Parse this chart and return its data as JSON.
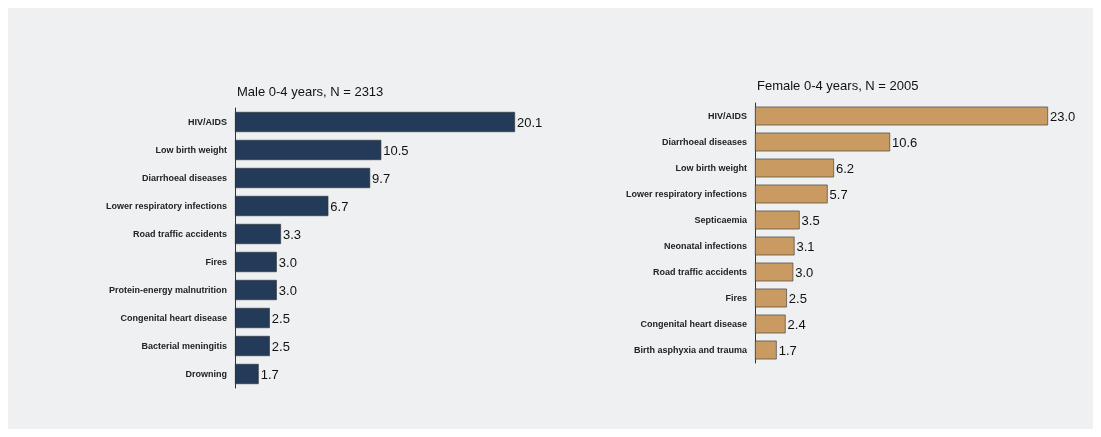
{
  "chart_data": [
    {
      "type": "bar",
      "orientation": "horizontal",
      "title": "Male 0-4 years, N = 2313",
      "categories": [
        "HIV/AIDS",
        "Low birth weight",
        "Diarrhoeal diseases",
        "Lower respiratory infections",
        "Road traffic accidents",
        "Fires",
        "Protein-energy malnutrition",
        "Congenital heart disease",
        "Bacterial meningitis",
        "Drowning"
      ],
      "values": [
        20.1,
        10.5,
        9.7,
        6.7,
        3.3,
        3.0,
        3.0,
        2.5,
        2.5,
        1.7
      ],
      "value_labels": [
        "20.1",
        "10.5",
        "9.7",
        "6.7",
        "3.3",
        "3.0",
        "3.0",
        "2.5",
        "2.5",
        "1.7"
      ],
      "color": "#233a59"
    },
    {
      "type": "bar",
      "orientation": "horizontal",
      "title": "Female 0-4 years, N = 2005",
      "categories": [
        "HIV/AIDS",
        "Diarrhoeal diseases",
        "Low birth weight",
        "Lower respiratory infections",
        "Septicaemia",
        "Neonatal infections",
        "Road traffic accidents",
        "Fires",
        "Congenital heart disease",
        "Birth asphyxia and trauma"
      ],
      "values": [
        23.0,
        10.6,
        6.2,
        5.7,
        3.5,
        3.1,
        3.0,
        2.5,
        2.4,
        1.7
      ],
      "value_labels": [
        "23.0",
        "10.6",
        "6.2",
        "5.7",
        "3.5",
        "3.1",
        "3.0",
        "2.5",
        "2.4",
        "1.7"
      ],
      "color": "#c99b62"
    }
  ]
}
